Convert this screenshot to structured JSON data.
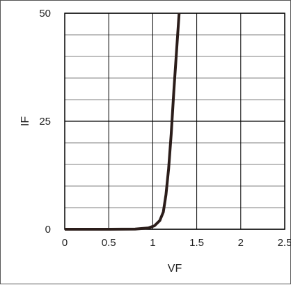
{
  "chart_data": {
    "type": "line",
    "xlabel": "VF",
    "ylabel": "IF",
    "xlim": [
      0,
      2.5
    ],
    "ylim": [
      0,
      50
    ],
    "x_ticks": [
      0,
      0.5,
      1,
      1.5,
      2,
      2.5
    ],
    "x_tick_labels": [
      "0",
      "0.5",
      "1",
      "1.5",
      "2",
      "2.5"
    ],
    "y_ticks": [
      0,
      25,
      50
    ],
    "y_tick_labels": [
      "0",
      "25",
      "50"
    ],
    "grid": true,
    "minor_y_step": 5,
    "series": [
      {
        "color": "#2b1d1a",
        "x": [
          0,
          0.5,
          0.8,
          0.95,
          1.02,
          1.08,
          1.12,
          1.15,
          1.18,
          1.21,
          1.24,
          1.27,
          1.3
        ],
        "y": [
          0,
          0,
          0.05,
          0.3,
          0.8,
          2,
          4,
          8,
          14,
          22,
          32,
          41,
          50
        ]
      }
    ]
  }
}
